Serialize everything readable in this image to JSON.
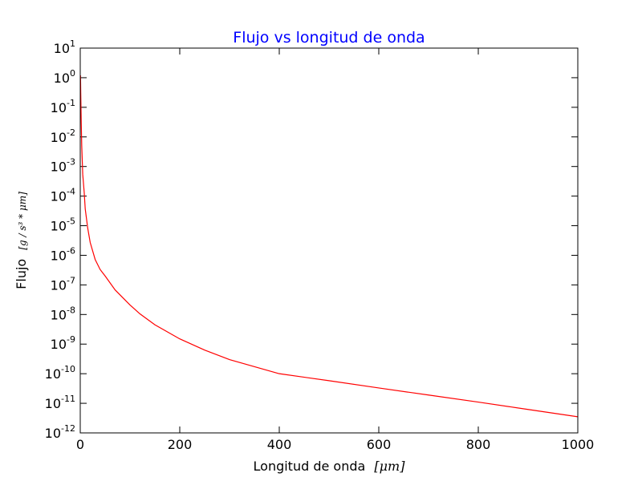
{
  "chart_data": {
    "type": "line",
    "title": "Flujo vs longitud de onda",
    "title_color": "#0000ff",
    "xlabel": "Longitud de onda",
    "xlabel_unit": "[μm]",
    "ylabel": "Flujo",
    "ylabel_unit": "[g / s³ * μm]",
    "xlim": [
      0,
      1000
    ],
    "ylim": [
      1e-12,
      10
    ],
    "yscale": "log",
    "grid": false,
    "xticks": [
      {
        "value": 0,
        "label": "0"
      },
      {
        "value": 200,
        "label": "200"
      },
      {
        "value": 400,
        "label": "400"
      },
      {
        "value": 600,
        "label": "600"
      },
      {
        "value": 800,
        "label": "800"
      },
      {
        "value": 1000,
        "label": "1000"
      }
    ],
    "yticks": [
      {
        "value": 10.0,
        "base": "10",
        "exp": "1"
      },
      {
        "value": 1.0,
        "base": "10",
        "exp": "0"
      },
      {
        "value": 0.1,
        "base": "10",
        "exp": "-1"
      },
      {
        "value": 0.01,
        "base": "10",
        "exp": "-2"
      },
      {
        "value": 0.001,
        "base": "10",
        "exp": "-3"
      },
      {
        "value": 0.0001,
        "base": "10",
        "exp": "-4"
      },
      {
        "value": 1e-05,
        "base": "10",
        "exp": "-5"
      },
      {
        "value": 1e-06,
        "base": "10",
        "exp": "-6"
      },
      {
        "value": 1e-07,
        "base": "10",
        "exp": "-7"
      },
      {
        "value": 1e-08,
        "base": "10",
        "exp": "-8"
      },
      {
        "value": 1e-09,
        "base": "10",
        "exp": "-9"
      },
      {
        "value": 1e-10,
        "base": "10",
        "exp": "-10"
      },
      {
        "value": 1e-11,
        "base": "10",
        "exp": "-11"
      },
      {
        "value": 1e-12,
        "base": "10",
        "exp": "-12"
      }
    ],
    "series": [
      {
        "color": "#ff0000",
        "x": [
          0.5,
          1,
          2,
          3,
          5,
          8,
          10,
          15,
          20,
          30,
          40,
          50,
          70,
          100,
          120,
          150,
          200,
          250,
          300,
          400,
          500,
          600,
          700,
          800,
          900,
          1000
        ],
        "y": [
          1.2,
          0.3,
          0.03,
          0.005,
          0.00054,
          0.00013,
          3.7e-05,
          8.3e-06,
          2.7e-06,
          7.2e-07,
          3.3e-07,
          2e-07,
          6.8e-08,
          2.1e-08,
          1.05e-08,
          4.5e-09,
          1.5e-09,
          6.3e-10,
          3e-10,
          1e-10,
          5.8e-11,
          3.3e-11,
          1.9e-11,
          1.1e-11,
          6.2e-12,
          3.5e-12
        ]
      }
    ]
  }
}
